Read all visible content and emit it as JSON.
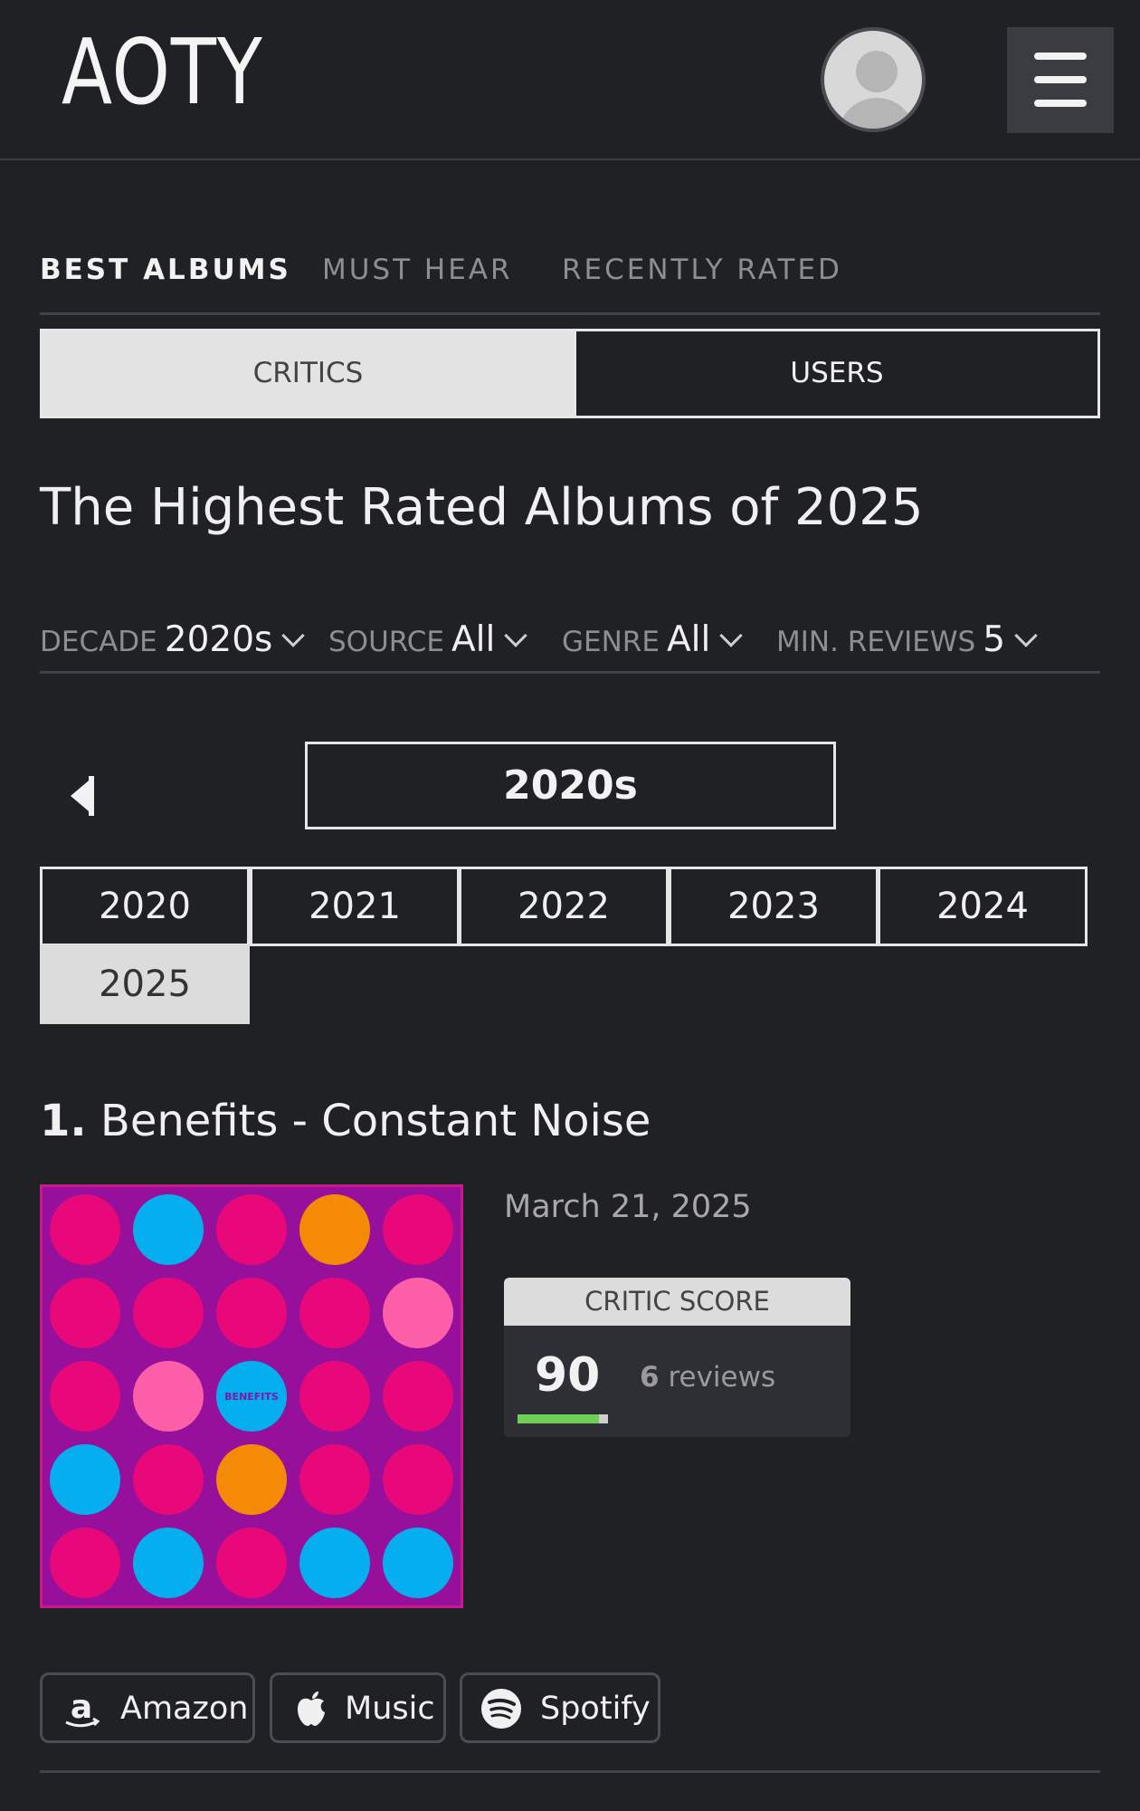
{
  "header": {
    "logo": "AOTY",
    "avatar_icon": "user-avatar-icon",
    "menu_icon": "hamburger-menu-icon"
  },
  "tabs": [
    {
      "label": "BEST ALBUMS",
      "active": true
    },
    {
      "label": "MUST HEAR",
      "active": false
    },
    {
      "label": "RECENTLY RATED",
      "active": false
    }
  ],
  "toggle": {
    "critics": "CRITICS",
    "users": "USERS",
    "selected": "critics"
  },
  "page_title": "The Highest Rated Albums of 2025",
  "filters": [
    {
      "label": "DECADE",
      "value": "2020s"
    },
    {
      "label": "SOURCE",
      "value": "All"
    },
    {
      "label": "GENRE",
      "value": "All"
    },
    {
      "label": "MIN. REVIEWS",
      "value": "5"
    }
  ],
  "decade_nav": {
    "prev_icon": "caret-left-icon",
    "current": "2020s"
  },
  "years": [
    "2020",
    "2021",
    "2022",
    "2023",
    "2024",
    "2025"
  ],
  "selected_year": "2025",
  "album": {
    "rank": "1.",
    "title": "Benefits - Constant Noise",
    "release_date": "March 21, 2025",
    "cover_text": "BENEFITS",
    "score_header": "CRITIC SCORE",
    "score": "90",
    "review_count": "6",
    "review_word": "reviews",
    "score_fraction": 0.9
  },
  "stream_links": [
    {
      "label": "Amazon",
      "icon": "amazon-icon"
    },
    {
      "label": "Music",
      "icon": "apple-icon"
    },
    {
      "label": "Spotify",
      "icon": "spotify-icon"
    }
  ],
  "colors": {
    "background": "#202125",
    "score_bar": "#6fcf58",
    "cover_bg": "#96109c",
    "cover_pink": "#e8087a",
    "cover_light_pink": "#fc5fa8",
    "cover_blue": "#05aeee",
    "cover_orange": "#f58a07"
  }
}
